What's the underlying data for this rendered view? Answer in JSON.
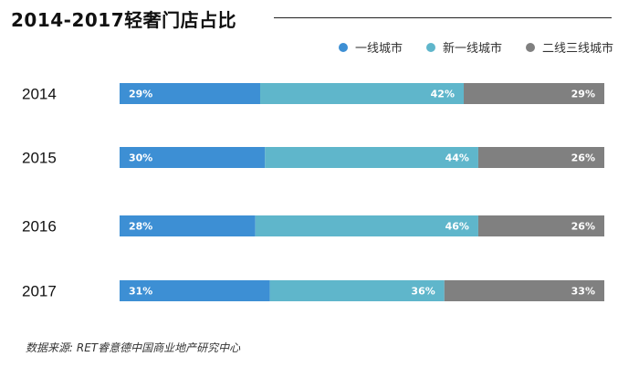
{
  "chart_data": {
    "type": "bar",
    "orientation": "horizontal",
    "stacked": true,
    "title": "2014-2017轻奢门店占比",
    "categories": [
      "2014",
      "2015",
      "2016",
      "2017"
    ],
    "series": [
      {
        "name": "一线城市",
        "color": "#3d8fd4",
        "values": [
          29,
          30,
          28,
          31
        ]
      },
      {
        "name": "新一线城市",
        "color": "#5fb6cb",
        "values": [
          42,
          44,
          46,
          36
        ]
      },
      {
        "name": "二线三线城市",
        "color": "#808080",
        "values": [
          29,
          26,
          26,
          33
        ]
      }
    ],
    "value_suffix": "%",
    "legend_position": "top-right",
    "grid": false
  },
  "source": "数据来源: RET睿意德中国商业地产研究中心"
}
